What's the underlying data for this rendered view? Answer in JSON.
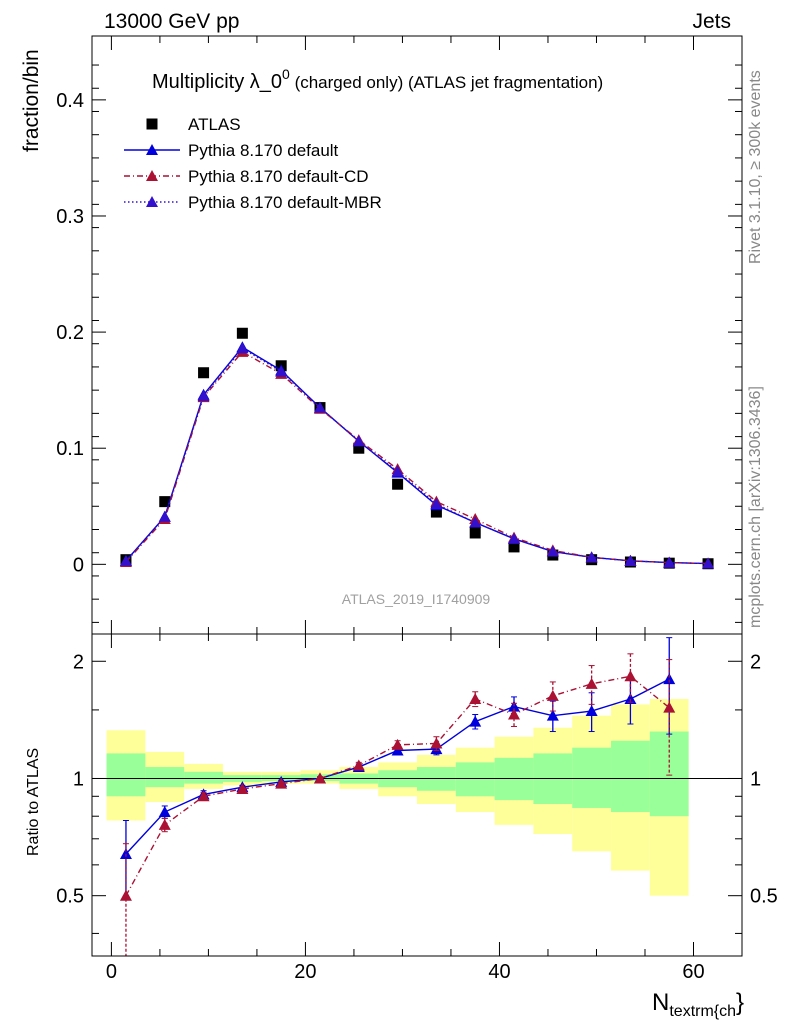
{
  "header": {
    "left": "13000 GeV pp",
    "right": "Jets"
  },
  "side": {
    "top": "Rivet 3.1.10, ≥ 300k events",
    "bottom": "mcplots.cern.ch [arXiv:1306.3436]"
  },
  "chart_data": [
    {
      "type": "scatter",
      "title_main": "Multiplicity λ_0",
      "title_sup": "0",
      "title_rest": " (charged only) (ATLAS jet fragmentation)",
      "ylabel": "fraction/bin",
      "xlabel_main": "N",
      "xlabel_sub": "textrm{ch",
      "xlabel_tail": "}",
      "watermark": "ATLAS_2019_I1740909",
      "xlim": [
        -2,
        65
      ],
      "ylim": [
        -0.06,
        0.455
      ],
      "xticks": [
        "0",
        "20",
        "40",
        "60"
      ],
      "yticks": [
        "0",
        "0.1",
        "0.2",
        "0.3",
        "0.4"
      ],
      "x": [
        1.5,
        5.5,
        9.5,
        13.5,
        17.5,
        21.5,
        25.5,
        29.5,
        33.5,
        37.5,
        41.5,
        45.5,
        49.5,
        53.5,
        57.5,
        61.5
      ],
      "series": [
        {
          "name": "ATLAS",
          "color": "#000000",
          "values": [
            0.004,
            0.054,
            0.165,
            0.199,
            0.171,
            0.135,
            0.1,
            0.069,
            0.045,
            0.027,
            0.015,
            0.008,
            0.004,
            0.002,
            0.001,
            0.0005
          ]
        },
        {
          "name": "Pythia 8.170 default",
          "color": "#0000dd",
          "values": [
            0.003,
            0.041,
            0.146,
            0.187,
            0.167,
            0.135,
            0.106,
            0.079,
            0.051,
            0.036,
            0.022,
            0.011,
            0.006,
            0.003,
            0.0015,
            0.0007
          ]
        },
        {
          "name": "Pythia 8.170 default-CD",
          "color": "#aa1133",
          "values": [
            0.002,
            0.039,
            0.144,
            0.183,
            0.164,
            0.134,
            0.107,
            0.082,
            0.054,
            0.039,
            0.023,
            0.012,
            0.006,
            0.003,
            0.0015,
            0.0007
          ]
        },
        {
          "name": "Pythia 8.170 default-MBR",
          "color": "#3311cc",
          "values": [
            0.003,
            0.041,
            0.145,
            0.186,
            0.166,
            0.135,
            0.106,
            0.08,
            0.052,
            0.036,
            0.022,
            0.011,
            0.006,
            0.003,
            0.0015,
            0.0007
          ]
        }
      ]
    },
    {
      "type": "line",
      "ylabel": "Ratio to ATLAS",
      "xlim": [
        -2,
        65
      ],
      "ylim": [
        0.35,
        2.35
      ],
      "yticks": [
        "0.5",
        "1",
        "2"
      ],
      "bands_x_edges": [
        -0.5,
        3.5,
        7.5,
        11.5,
        15.5,
        19.5,
        23.5,
        27.5,
        31.5,
        35.5,
        39.5,
        43.5,
        47.5,
        51.5,
        55.5,
        59.5
      ],
      "band_inner": [
        [
          0.9,
          1.16
        ],
        [
          0.95,
          1.07
        ],
        [
          0.97,
          1.04
        ],
        [
          0.98,
          1.02
        ],
        [
          0.985,
          1.02
        ],
        [
          0.985,
          1.025
        ],
        [
          0.97,
          1.03
        ],
        [
          0.95,
          1.05
        ],
        [
          0.93,
          1.07
        ],
        [
          0.9,
          1.1
        ],
        [
          0.88,
          1.13
        ],
        [
          0.86,
          1.16
        ],
        [
          0.84,
          1.2
        ],
        [
          0.82,
          1.25
        ],
        [
          0.8,
          1.32
        ]
      ],
      "band_outer": [
        [
          0.78,
          1.33
        ],
        [
          0.87,
          1.17
        ],
        [
          0.94,
          1.09
        ],
        [
          0.96,
          1.04
        ],
        [
          0.97,
          1.04
        ],
        [
          0.97,
          1.05
        ],
        [
          0.94,
          1.07
        ],
        [
          0.9,
          1.1
        ],
        [
          0.86,
          1.15
        ],
        [
          0.82,
          1.2
        ],
        [
          0.76,
          1.28
        ],
        [
          0.72,
          1.35
        ],
        [
          0.65,
          1.45
        ],
        [
          0.58,
          1.55
        ],
        [
          0.5,
          1.6
        ]
      ],
      "series": [
        {
          "name": "Pythia 8.170 default",
          "color": "#0000dd",
          "values": [
            0.64,
            0.82,
            0.91,
            0.95,
            0.98,
            1.0,
            1.07,
            1.18,
            1.19,
            1.4,
            1.53,
            1.45,
            1.49,
            1.6,
            1.8
          ],
          "err": [
            0.14,
            0.03,
            0.02,
            0.01,
            0.01,
            0.01,
            0.02,
            0.03,
            0.04,
            0.06,
            0.09,
            0.13,
            0.17,
            0.22,
            0.5
          ]
        },
        {
          "name": "Pythia 8.170 default-CD",
          "color": "#aa1133",
          "values": [
            0.5,
            0.76,
            0.9,
            0.94,
            0.97,
            1.0,
            1.08,
            1.22,
            1.23,
            1.6,
            1.46,
            1.63,
            1.75,
            1.83,
            1.52
          ],
          "err": [
            0.18,
            0.03,
            0.02,
            0.01,
            0.01,
            0.01,
            0.02,
            0.03,
            0.05,
            0.07,
            0.1,
            0.14,
            0.2,
            0.26,
            0.5
          ]
        }
      ]
    }
  ]
}
